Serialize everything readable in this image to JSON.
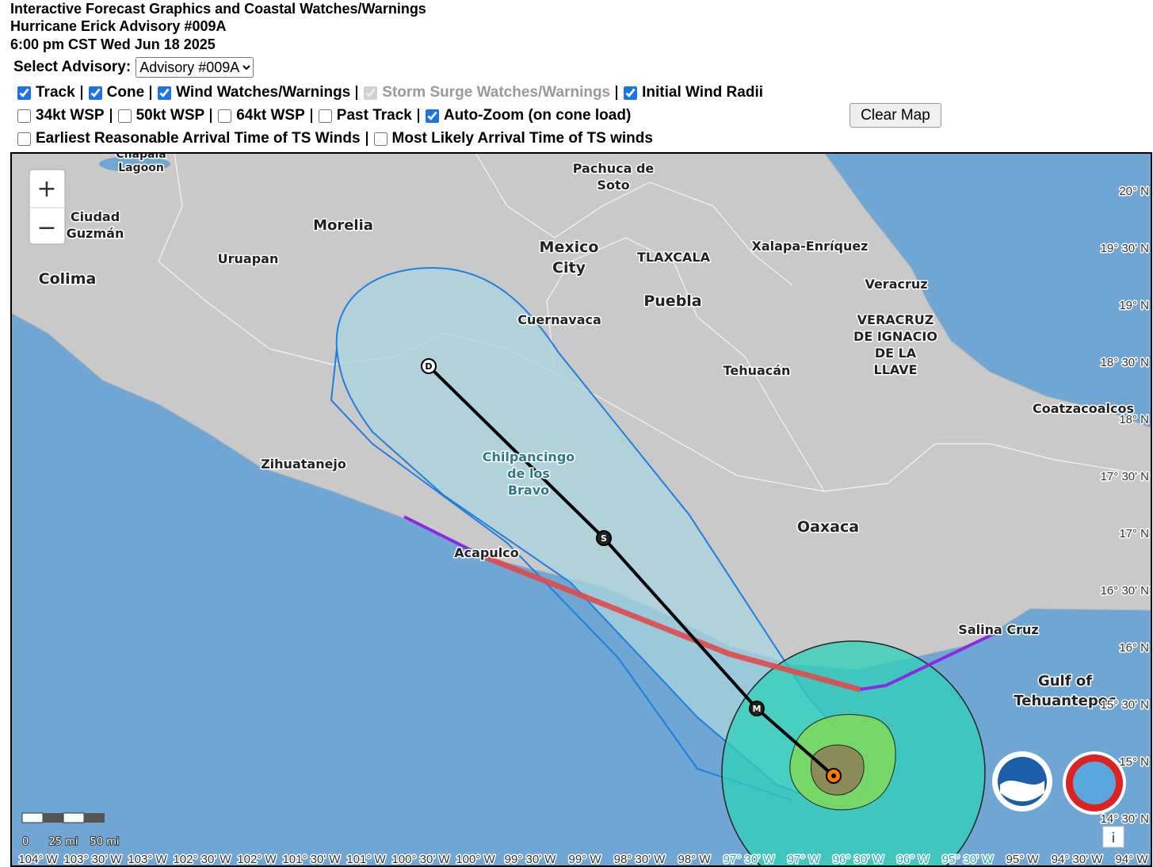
{
  "header": {
    "title": "Interactive Forecast Graphics and Coastal Watches/Warnings",
    "advisory": "Hurricane Erick Advisory #009A",
    "time": "6:00 pm CST Wed Jun 18 2025"
  },
  "advisory_select": {
    "label": "Select Advisory:",
    "selected": "Advisory #009A"
  },
  "layers": [
    [
      {
        "label": "Track",
        "checked": true
      },
      {
        "label": "Cone",
        "checked": true
      },
      {
        "label": "Wind Watches/Warnings",
        "checked": true
      },
      {
        "label": "Storm Surge Watches/Warnings",
        "checked": true,
        "disabled": true
      },
      {
        "label": "Initial Wind Radii",
        "checked": true
      }
    ],
    [
      {
        "label": "34kt WSP",
        "checked": false
      },
      {
        "label": "50kt WSP",
        "checked": false
      },
      {
        "label": "64kt WSP",
        "checked": false
      },
      {
        "label": "Past Track",
        "checked": false
      },
      {
        "label": "Auto-Zoom (on cone load)",
        "checked": true
      }
    ],
    [
      {
        "label": "Earliest Reasonable Arrival Time of TS Winds",
        "checked": false
      },
      {
        "label": "Most Likely Arrival Time of TS winds",
        "checked": false
      }
    ]
  ],
  "clear_button": "Clear Map",
  "map": {
    "zoom_in": "+",
    "zoom_out": "−",
    "info": "i",
    "places": [
      [
        "Chapala",
        "Lagoon"
      ],
      [
        "Pachuca de",
        "Soto"
      ],
      [
        "Ciudad",
        "Guzmán"
      ],
      [
        "Morelia"
      ],
      [
        "Uruapan"
      ],
      [
        "Mexico",
        "City"
      ],
      [
        "TLAXCALA"
      ],
      [
        "Xalapa-Enríquez"
      ],
      [
        "Colima"
      ],
      [
        "Veracruz"
      ],
      [
        "Puebla"
      ],
      [
        "Cuernavaca"
      ],
      [
        "VERACRUZ",
        "DE IGNACIO",
        "DE LA",
        "LLAVE"
      ],
      [
        "Tehuacán"
      ],
      [
        "Coatzacoalcos"
      ],
      [
        "Zihuatanejo"
      ],
      [
        "Chilpancingo",
        "de los",
        "Bravo"
      ],
      [
        "Oaxaca"
      ],
      [
        "Acapulco"
      ],
      [
        "Salina Cruz"
      ],
      [
        "Gulf of",
        "Tehuantepec"
      ]
    ],
    "track_points": [
      "D",
      "S",
      "M"
    ],
    "lat_labels": [
      "20° N",
      "19° 30' N",
      "19° N",
      "18° 30' N",
      "18° N",
      "17° 30' N",
      "17° N",
      "16° 30' N",
      "16° N",
      "15° 30' N",
      "15° N",
      "14° 30' N"
    ],
    "lon_labels": [
      "104° W",
      "103° 30' W",
      "103° W",
      "102° 30' W",
      "102° W",
      "101° 30' W",
      "101° W",
      "100° 30' W",
      "100° W",
      "99° 30' W",
      "99° W",
      "98° 30' W",
      "98° W",
      "97° 30' W",
      "97° W",
      "96° 30' W",
      "96° W",
      "95° 30' W",
      "95° W",
      "94° 30' W",
      "94° W"
    ],
    "scale": [
      "0",
      "25 mi",
      "50 mi"
    ]
  }
}
